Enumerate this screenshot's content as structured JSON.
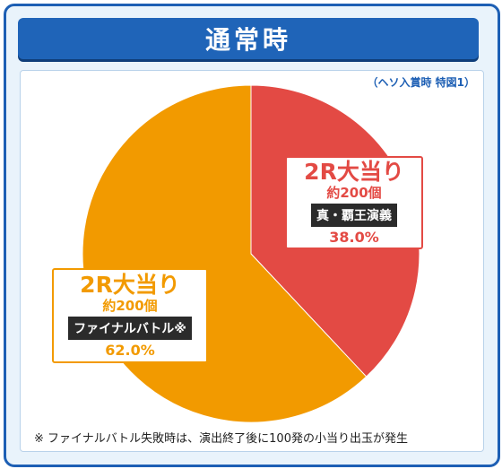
{
  "header": {
    "title": "通常時"
  },
  "source_note": "（ヘソ入賞時 特図1）",
  "chart_data": {
    "type": "pie",
    "title": "通常時",
    "slices": [
      {
        "label": "2R大当り",
        "approx": "約200個",
        "tag": "真・覇王演義",
        "value": 38.0,
        "value_label": "38.0%",
        "color": "#e34a44"
      },
      {
        "label": "2R大当り",
        "approx": "約200個",
        "tag": "ファイナルバトル※",
        "value": 62.0,
        "value_label": "62.0%",
        "color": "#f29a00"
      }
    ]
  },
  "footnote": "※ ファイナルバトル失敗時は、演出終了後に100発の小当り出玉が発生"
}
